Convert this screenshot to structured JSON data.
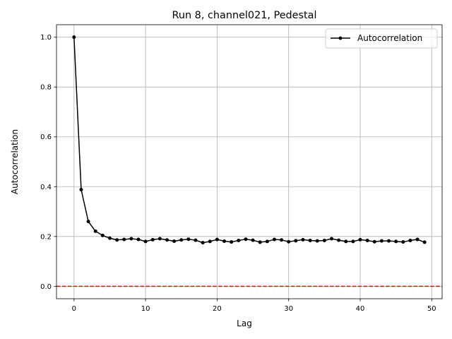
{
  "chart_data": {
    "type": "line",
    "title": "Run 8, channel021, Pedestal",
    "xlabel": "Lag",
    "ylabel": "Autocorrelation",
    "xlim": [
      -2.45,
      51.45
    ],
    "ylim": [
      -0.05,
      1.05
    ],
    "xticks": [
      0,
      10,
      20,
      30,
      40,
      50
    ],
    "xtick_labels": [
      "0",
      "10",
      "20",
      "30",
      "40",
      "50"
    ],
    "yticks": [
      0.0,
      0.2,
      0.4,
      0.6,
      0.8,
      1.0
    ],
    "ytick_labels": [
      "0.0",
      "0.2",
      "0.4",
      "0.6",
      "0.8",
      "1.0"
    ],
    "grid": true,
    "legend_position": "top-right",
    "series": [
      {
        "name": "Autocorrelation",
        "color": "#000000",
        "marker": "circle",
        "x": [
          0,
          1,
          2,
          3,
          4,
          5,
          6,
          7,
          8,
          9,
          10,
          11,
          12,
          13,
          14,
          15,
          16,
          17,
          18,
          19,
          20,
          21,
          22,
          23,
          24,
          25,
          26,
          27,
          28,
          29,
          30,
          31,
          32,
          33,
          34,
          35,
          36,
          37,
          38,
          39,
          40,
          41,
          42,
          43,
          44,
          45,
          46,
          47,
          48,
          49
        ],
        "values": [
          1.0,
          0.388,
          0.26,
          0.221,
          0.204,
          0.193,
          0.186,
          0.188,
          0.191,
          0.188,
          0.18,
          0.187,
          0.191,
          0.186,
          0.181,
          0.186,
          0.189,
          0.185,
          0.175,
          0.18,
          0.188,
          0.181,
          0.178,
          0.184,
          0.189,
          0.185,
          0.177,
          0.18,
          0.188,
          0.186,
          0.179,
          0.183,
          0.187,
          0.184,
          0.182,
          0.184,
          0.191,
          0.185,
          0.18,
          0.18,
          0.187,
          0.184,
          0.179,
          0.182,
          0.182,
          0.18,
          0.178,
          0.184,
          0.188,
          0.177
        ]
      }
    ],
    "reference_line": {
      "y": 0.0,
      "color": "#ff0000",
      "style": "dashed"
    }
  }
}
